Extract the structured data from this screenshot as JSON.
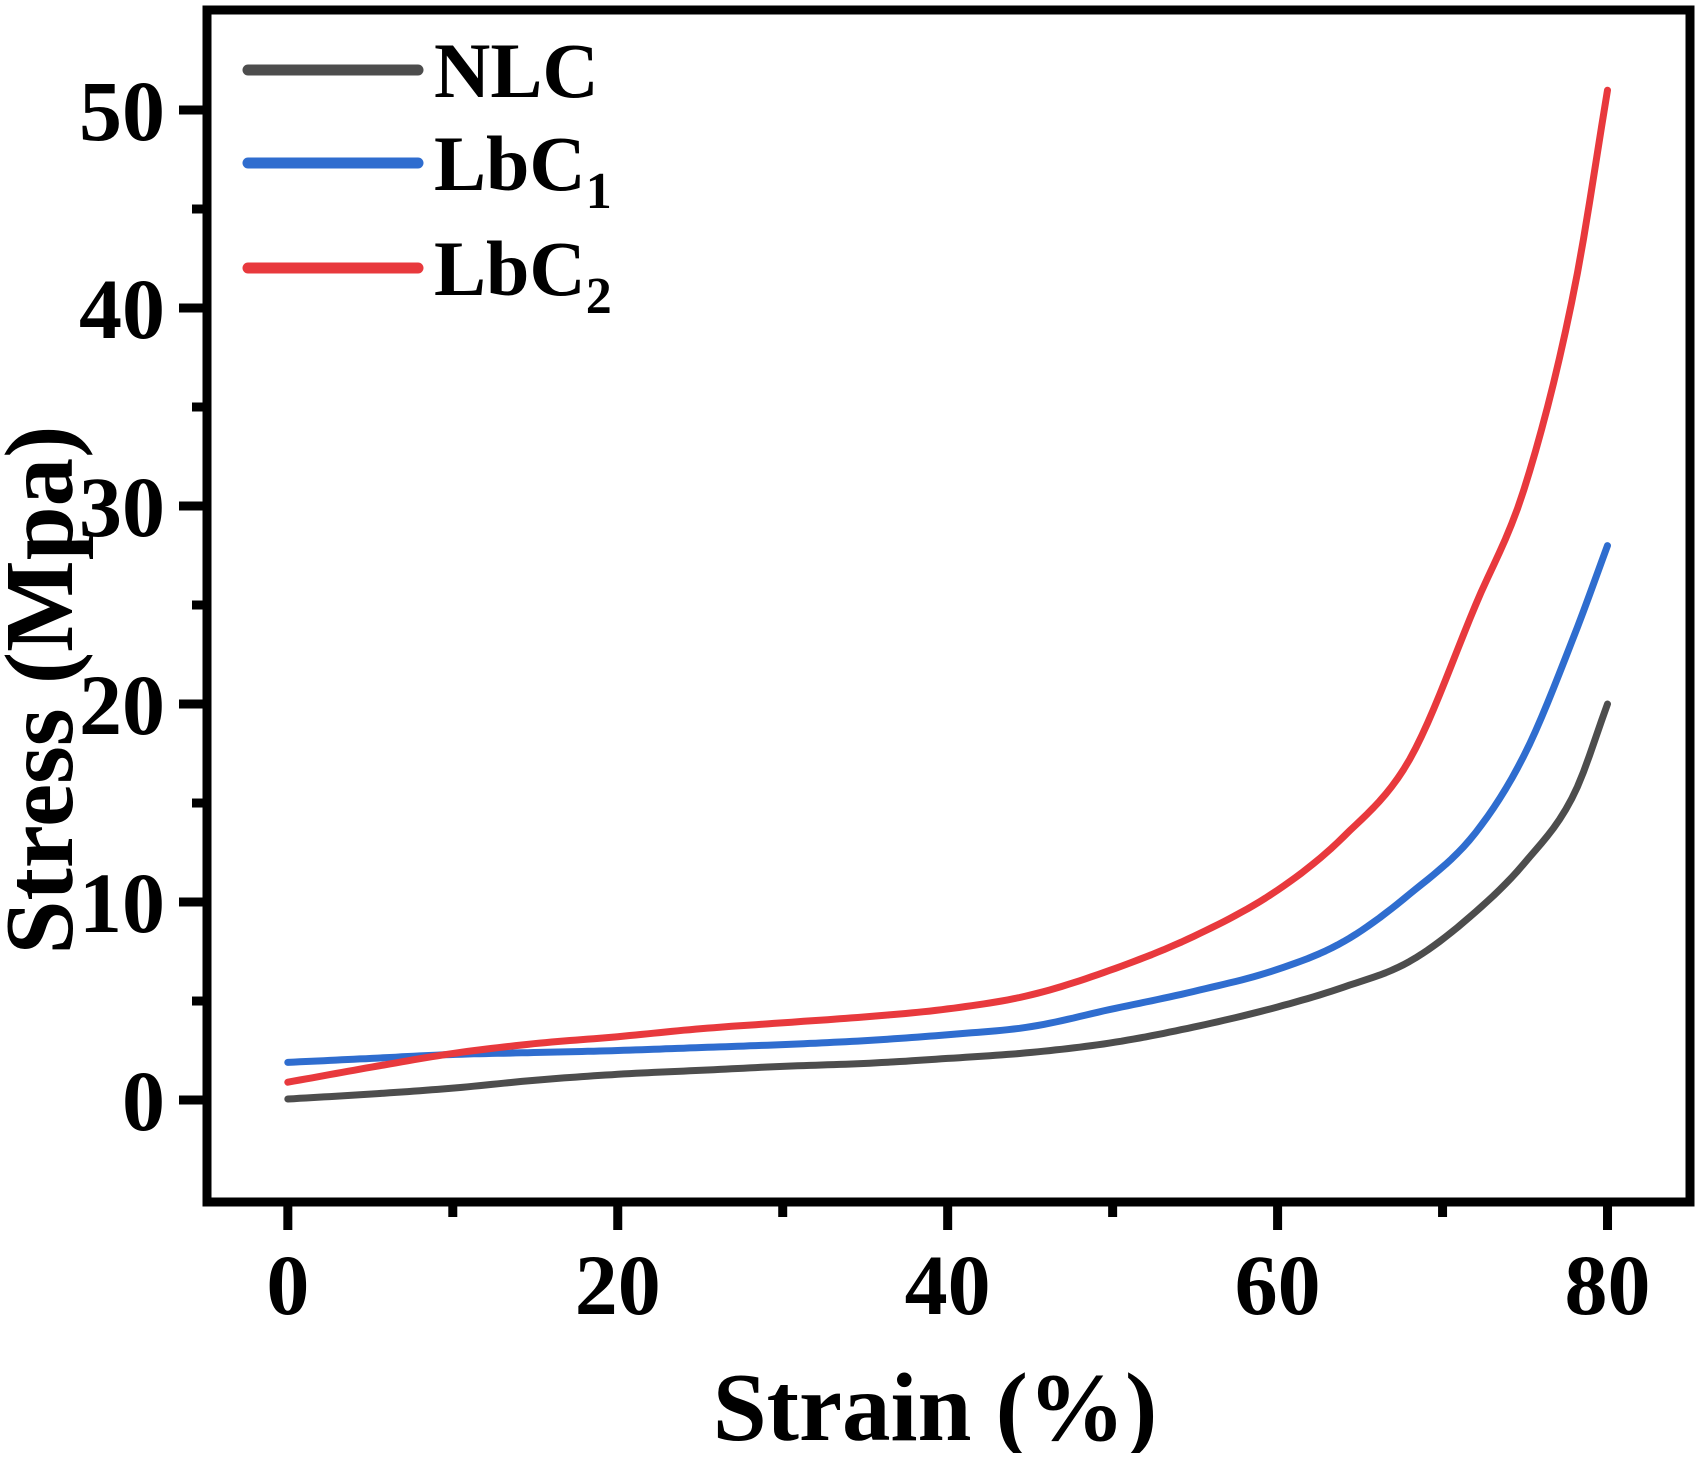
{
  "figure": {
    "background": "#ffffff",
    "frame_color": "#000000",
    "tick_color": "#000000",
    "text_color": "#000000"
  },
  "chart_data": {
    "type": "line",
    "title": "",
    "xlabel": "Strain (%)",
    "ylabel": "Stress (Mpa)",
    "xlim": [
      -4.9,
      85.0
    ],
    "ylim": [
      -5.15,
      55.05
    ],
    "x_major_ticks": [
      0,
      20,
      40,
      60,
      80
    ],
    "x_minor_ticks": [
      10,
      30,
      50,
      70
    ],
    "y_major_ticks": [
      0,
      10,
      20,
      30,
      40,
      50
    ],
    "y_minor_ticks": [
      5,
      15,
      25,
      35,
      45
    ],
    "grid": false,
    "legend_position": "top-left",
    "series": [
      {
        "name": "NLC",
        "label": "NLC",
        "sub": "",
        "color": "#4d4d4d",
        "points": [
          [
            0,
            0.05
          ],
          [
            5,
            0.3
          ],
          [
            10,
            0.6
          ],
          [
            15,
            1.0
          ],
          [
            20,
            1.3
          ],
          [
            25,
            1.5
          ],
          [
            30,
            1.7
          ],
          [
            35,
            1.85
          ],
          [
            40,
            2.1
          ],
          [
            45,
            2.4
          ],
          [
            50,
            2.9
          ],
          [
            55,
            3.7
          ],
          [
            60,
            4.7
          ],
          [
            64,
            5.7
          ],
          [
            68,
            7.0
          ],
          [
            72,
            9.5
          ],
          [
            75,
            12.0
          ],
          [
            78,
            15.5
          ],
          [
            80,
            20.0
          ]
        ]
      },
      {
        "name": "LbC1",
        "label": "LbC",
        "sub": "1",
        "color": "#2f6dcf",
        "points": [
          [
            0,
            1.9
          ],
          [
            5,
            2.1
          ],
          [
            10,
            2.3
          ],
          [
            15,
            2.4
          ],
          [
            20,
            2.5
          ],
          [
            25,
            2.65
          ],
          [
            30,
            2.8
          ],
          [
            35,
            3.0
          ],
          [
            40,
            3.3
          ],
          [
            45,
            3.7
          ],
          [
            50,
            4.6
          ],
          [
            55,
            5.5
          ],
          [
            60,
            6.6
          ],
          [
            64,
            8.0
          ],
          [
            68,
            10.4
          ],
          [
            72,
            13.5
          ],
          [
            75,
            17.5
          ],
          [
            78,
            23.5
          ],
          [
            80,
            28.0
          ]
        ]
      },
      {
        "name": "LbC2",
        "label": "LbC",
        "sub": "2",
        "color": "#e8393d",
        "points": [
          [
            0,
            0.9
          ],
          [
            5,
            1.65
          ],
          [
            10,
            2.35
          ],
          [
            15,
            2.85
          ],
          [
            20,
            3.2
          ],
          [
            25,
            3.6
          ],
          [
            30,
            3.9
          ],
          [
            35,
            4.2
          ],
          [
            40,
            4.6
          ],
          [
            45,
            5.3
          ],
          [
            50,
            6.6
          ],
          [
            55,
            8.3
          ],
          [
            60,
            10.6
          ],
          [
            64,
            13.3
          ],
          [
            68,
            17.2
          ],
          [
            72,
            25.0
          ],
          [
            75,
            31.0
          ],
          [
            78,
            41.0
          ],
          [
            80,
            51.0
          ]
        ]
      }
    ]
  }
}
